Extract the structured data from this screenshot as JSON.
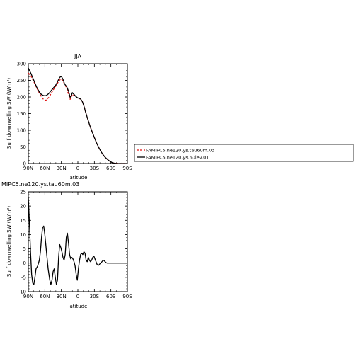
{
  "chart_data": [
    {
      "type": "line",
      "title": "JJA",
      "xlabel": "latitude",
      "ylabel": "Surf downwelling SW (W/m²)",
      "xlim": [
        90,
        -90
      ],
      "ylim": [
        0,
        300
      ],
      "xtick_values": [
        90,
        60,
        30,
        0,
        -30,
        -60,
        -90
      ],
      "xtick_labels": [
        "90N",
        "60N",
        "30N",
        "0",
        "30S",
        "60S",
        "90S"
      ],
      "ytick_values": [
        0,
        50,
        100,
        150,
        200,
        250,
        300
      ],
      "ytick_labels": [
        "0",
        "50",
        "100",
        "150",
        "200",
        "250",
        "300"
      ],
      "legend": "right, outside",
      "series": [
        {
          "name": "FAMIPC5.ne120.ys.tau60m.03",
          "color": "#e01010",
          "dash": "dashed",
          "x": [
            90,
            85,
            80,
            75,
            70,
            66,
            62,
            58,
            55,
            52,
            48,
            44,
            40,
            36,
            33,
            30,
            27,
            24,
            20,
            17,
            14,
            12,
            10,
            7,
            4,
            1,
            -2,
            -5,
            -8,
            -11,
            -14,
            -18,
            -22,
            -26,
            -30,
            -34,
            -38,
            -42,
            -46,
            -50,
            -54,
            -58,
            -62,
            -66,
            -70,
            -74,
            -78,
            -82,
            -86,
            -90
          ],
          "y": [
            272,
            262,
            246,
            228,
            212,
            200,
            192,
            190,
            195,
            200,
            212,
            223,
            233,
            244,
            251,
            254,
            248,
            238,
            226,
            208,
            193,
            200,
            208,
            205,
            200,
            197,
            195,
            194,
            187,
            173,
            155,
            133,
            113,
            95,
            78,
            62,
            48,
            36,
            26,
            18,
            12,
            7,
            3,
            1,
            0.3,
            0,
            0,
            0,
            0,
            0
          ]
        },
        {
          "name": "FAMIPC5.ne120.ys.60lev.01",
          "color": "#000000",
          "dash": "solid",
          "x": [
            90,
            85,
            80,
            75,
            70,
            66,
            62,
            58,
            55,
            52,
            48,
            44,
            40,
            36,
            33,
            30,
            27,
            24,
            20,
            17,
            14,
            12,
            10,
            7,
            4,
            1,
            -2,
            -5,
            -8,
            -11,
            -14,
            -18,
            -22,
            -26,
            -30,
            -34,
            -38,
            -42,
            -46,
            -50,
            -54,
            -58,
            -62,
            -66,
            -70,
            -74,
            -78,
            -82,
            -86,
            -90
          ],
          "y": [
            287,
            270,
            250,
            230,
            215,
            207,
            204,
            204,
            207,
            212,
            220,
            228,
            236,
            249,
            259,
            262,
            253,
            239,
            230,
            218,
            199,
            203,
            213,
            208,
            202,
            198,
            196,
            194,
            187,
            173,
            155,
            133,
            113,
            95,
            78,
            62,
            48,
            36,
            26,
            18,
            12,
            7,
            3,
            1,
            0.3,
            0,
            0,
            0,
            0,
            0
          ]
        }
      ]
    },
    {
      "type": "line",
      "title": "MIPC5.ne120.ys.tau60m.03",
      "xlabel": "latitude",
      "ylabel": "Surf downwelling SW (W/m²)",
      "xlim": [
        90,
        -90
      ],
      "ylim": [
        -10,
        25
      ],
      "xtick_values": [
        90,
        60,
        30,
        0,
        -30,
        -60,
        -90
      ],
      "xtick_labels": [
        "90N",
        "60N",
        "30N",
        "0",
        "30S",
        "60S",
        "90S"
      ],
      "ytick_values": [
        -10,
        -5,
        0,
        5,
        10,
        15,
        20,
        25
      ],
      "ytick_labels": [
        "-10",
        "-5",
        "0",
        "5",
        "10",
        "15",
        "20",
        "25"
      ],
      "series": [
        {
          "color": "#000000",
          "dash": "solid",
          "x": [
            90,
            88,
            86,
            84,
            82,
            80,
            78,
            76,
            73,
            70,
            68,
            66,
            64,
            62,
            60,
            58,
            56,
            54,
            51,
            49,
            47,
            45,
            43,
            41,
            39,
            37,
            35,
            33,
            31,
            29,
            27,
            25,
            23,
            21,
            19,
            17,
            15,
            13,
            11,
            9,
            7,
            5,
            3,
            1,
            -1,
            -3,
            -5,
            -7,
            -9,
            -11,
            -13,
            -15,
            -17,
            -19,
            -21,
            -23,
            -25,
            -27,
            -29,
            -31,
            -33,
            -35,
            -37,
            -39,
            -41,
            -43,
            -45,
            -47,
            -49,
            -51,
            -53,
            -55,
            -57,
            -59,
            -61,
            -63,
            -65,
            -67,
            -69,
            -71,
            -73,
            -75,
            -77,
            -80,
            -83,
            -86,
            -90
          ],
          "y": [
            23,
            14,
            4,
            -4,
            -7,
            -7.5,
            -5,
            -2,
            -1,
            1,
            4,
            9,
            12.5,
            13,
            10,
            6,
            2,
            -2,
            -6,
            -7.5,
            -6,
            -3,
            -2,
            -5,
            -7.5,
            -6,
            2,
            6.5,
            5.5,
            4,
            2,
            1,
            3,
            9,
            10.5,
            7,
            3,
            1.5,
            2,
            1.5,
            0.5,
            -1,
            -4,
            -6,
            -2,
            1,
            3,
            3.5,
            3,
            4,
            3.5,
            1,
            0.5,
            2,
            1,
            0.5,
            1,
            2,
            2.5,
            1.5,
            0.5,
            -0.5,
            -0.8,
            -0.5,
            0,
            0.3,
            0.8,
            1,
            0.6,
            0.2,
            0,
            0,
            0,
            0,
            0,
            0,
            0,
            0,
            0,
            0,
            0,
            0,
            0,
            0,
            0,
            0,
            0
          ]
        }
      ]
    }
  ]
}
